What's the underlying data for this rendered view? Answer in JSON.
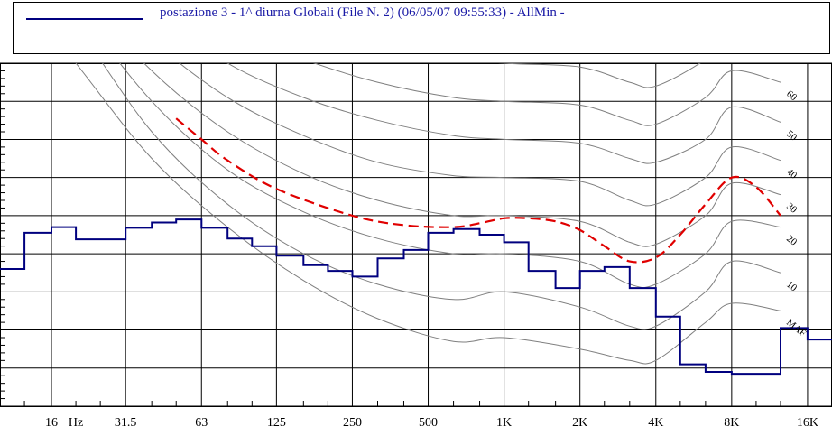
{
  "legend": {
    "series_label": "postazione 3 - 1^ diurna Globali  (File N. 2) (06/05/07 09:55:33) - AllMin -",
    "series_color": "#00007f"
  },
  "colors": {
    "spectrum": "#00007f",
    "mask": "#e00000",
    "isophon": "#7f7f7f",
    "grid": "#000000"
  },
  "chart_data": {
    "type": "line",
    "title": "",
    "xlabel": "",
    "ylabel": "",
    "x_scale": "log",
    "xlim_hz": [
      10,
      20000
    ],
    "ylim_db": [
      -20,
      70
    ],
    "grid": true,
    "legend_position": "top",
    "x_ticks": [
      {
        "freq": 16,
        "label": "16"
      },
      {
        "freq": 20,
        "label": "Hz"
      },
      {
        "freq": 31.5,
        "label": "31.5"
      },
      {
        "freq": 63,
        "label": "63"
      },
      {
        "freq": 125,
        "label": "125"
      },
      {
        "freq": 250,
        "label": "250"
      },
      {
        "freq": 500,
        "label": "500"
      },
      {
        "freq": 1000,
        "label": "1K"
      },
      {
        "freq": 2000,
        "label": "2K"
      },
      {
        "freq": 4000,
        "label": "4K"
      },
      {
        "freq": 8000,
        "label": "8K"
      },
      {
        "freq": 16000,
        "label": "16K"
      }
    ],
    "series": [
      {
        "name": "postazione 3 - 1^ diurna Globali  (File N. 2) (06/05/07 09:55:33) - AllMin -",
        "style": "step",
        "bands_hz": [
          10,
          12.5,
          16,
          20,
          25,
          31.5,
          40,
          50,
          63,
          80,
          100,
          125,
          160,
          200,
          250,
          315,
          400,
          500,
          630,
          800,
          1000,
          1250,
          1600,
          2000,
          2500,
          3150,
          4000,
          5000,
          6300,
          8000,
          10000,
          12500,
          16000,
          20000
        ],
        "values_db": [
          16.0,
          25.5,
          27.0,
          23.8,
          23.8,
          26.8,
          28.2,
          29.0,
          26.8,
          24.0,
          22.0,
          19.5,
          17.0,
          15.5,
          14.0,
          18.8,
          21.0,
          25.5,
          26.5,
          25.0,
          23.0,
          15.5,
          11.0,
          15.5,
          16.5,
          11.0,
          3.5,
          -9.0,
          -11.0,
          -11.5,
          -11.5,
          0.5,
          -2.5
        ]
      },
      {
        "name": "",
        "style": "dashed",
        "x_hz": [
          50,
          63,
          80,
          125,
          250,
          400,
          630,
          800,
          1000,
          1250,
          1600,
          2000,
          2500,
          3150,
          4000,
          5000,
          6300,
          8000,
          10000,
          12500
        ],
        "y_db": [
          55.5,
          50.0,
          44.5,
          37.0,
          30.0,
          27.5,
          27.0,
          28.0,
          29.3,
          29.3,
          28.5,
          26.2,
          22.0,
          18.0,
          19.0,
          25.0,
          33.0,
          40.0,
          37.5,
          30.0
        ]
      }
    ],
    "isophon_curves": [
      {
        "label": "MAF",
        "x_hz": [
          10,
          20,
          40,
          80,
          160,
          315,
          630,
          1000,
          2000,
          3150,
          4000,
          6300,
          8000,
          12500
        ],
        "y_db": [
          95.0,
          70.0,
          45.0,
          27.0,
          13.0,
          3.0,
          -3.0,
          -2.0,
          -5.0,
          -8.0,
          -8.0,
          2.0,
          7.0,
          5.0
        ]
      },
      {
        "label": "10",
        "x_hz": [
          10,
          20,
          40,
          80,
          160,
          315,
          630,
          1000,
          2000,
          3150,
          4000,
          6300,
          8000,
          12500
        ],
        "y_db": [
          105.0,
          80.0,
          52.0,
          33.0,
          20.0,
          12.0,
          8.0,
          10.0,
          6.0,
          1.0,
          1.0,
          10.0,
          18.0,
          15.0
        ]
      },
      {
        "label": "20",
        "x_hz": [
          10,
          20,
          40,
          80,
          160,
          315,
          630,
          1000,
          2000,
          3150,
          4000,
          6300,
          8000,
          12500
        ],
        "y_db": [
          110.0,
          85.0,
          60.0,
          42.0,
          31.0,
          24.0,
          20.0,
          20.0,
          18.0,
          12.0,
          12.0,
          20.0,
          28.5,
          27.0
        ]
      },
      {
        "label": "30",
        "x_hz": [
          10,
          20,
          40,
          80,
          160,
          315,
          630,
          1000,
          2000,
          3150,
          4000,
          6300,
          8000,
          12500
        ],
        "y_db": [
          115.0,
          90.0,
          68.0,
          52.0,
          41.0,
          34.0,
          30.0,
          30.0,
          28.5,
          23.0,
          22.5,
          30.0,
          38.5,
          35.5
        ]
      },
      {
        "label": "40",
        "x_hz": [
          10,
          20,
          40,
          80,
          160,
          315,
          630,
          1000,
          2000,
          3150,
          4000,
          6300,
          8000,
          12500
        ],
        "y_db": [
          120.0,
          95.0,
          76.0,
          61.0,
          51.0,
          44.0,
          40.5,
          40.0,
          39.0,
          34.0,
          33.0,
          40.0,
          48.0,
          44.5
        ]
      },
      {
        "label": "50",
        "x_hz": [
          10,
          20,
          40,
          80,
          160,
          315,
          630,
          1000,
          2000,
          3150,
          4000,
          6300,
          8000,
          12500
        ],
        "y_db": [
          125.0,
          100.0,
          84.0,
          70.0,
          61.0,
          55.0,
          51.0,
          50.0,
          49.0,
          45.0,
          44.0,
          50.0,
          58.5,
          54.5
        ]
      },
      {
        "label": "60",
        "x_hz": [
          10,
          20,
          40,
          80,
          160,
          315,
          630,
          1000,
          2000,
          3150,
          4000,
          6300,
          8000,
          12500
        ],
        "y_db": [
          130.0,
          105.0,
          92.0,
          79.0,
          71.0,
          65.0,
          61.0,
          60.0,
          59.0,
          55.0,
          54.0,
          61.0,
          68.0,
          65.0
        ]
      },
      {
        "label": "",
        "x_hz": [
          10,
          20,
          40,
          80,
          160,
          315,
          630,
          1000,
          2000,
          3150,
          4000,
          6300,
          8000,
          12500
        ],
        "y_db": [
          135.0,
          110.0,
          100.0,
          88.0,
          81.0,
          75.5,
          71.5,
          70.0,
          69.0,
          65.0,
          64.0,
          71.0,
          78.0,
          75.0
        ]
      }
    ]
  }
}
